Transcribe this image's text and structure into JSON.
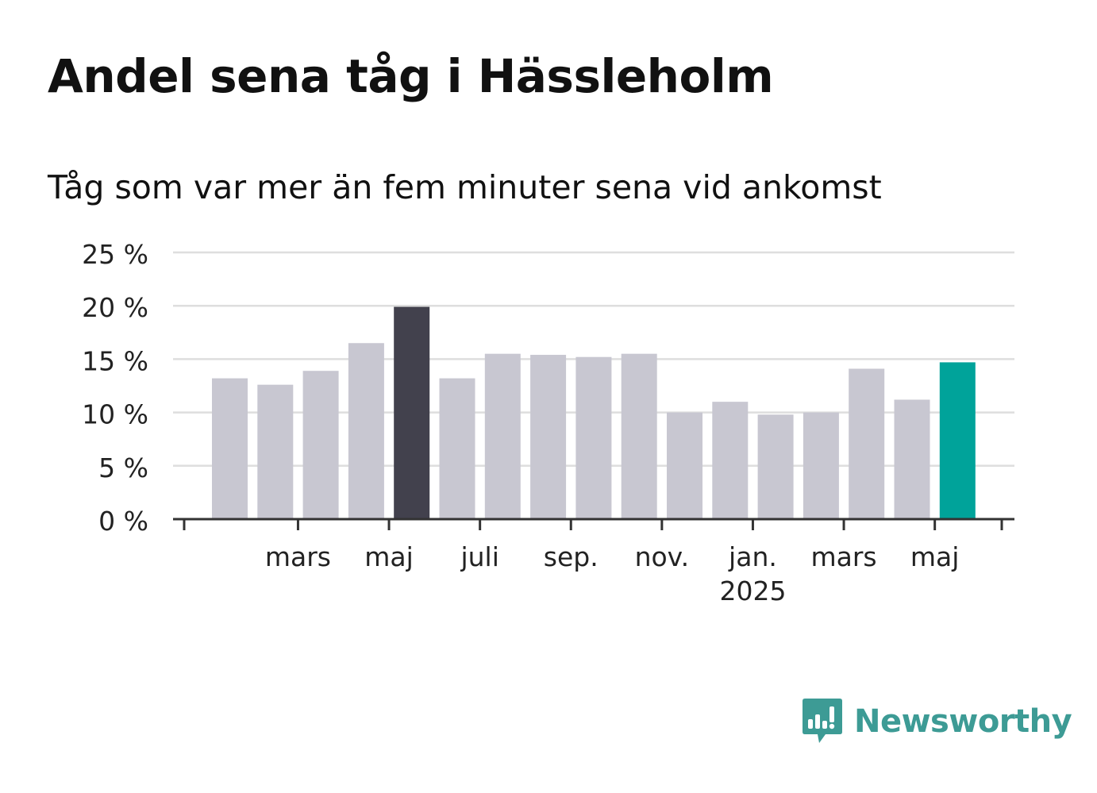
{
  "chart_data": {
    "type": "bar",
    "title": "Andel sena tåg i Hässleholm",
    "subtitle": "Tåg som var mer än fem minuter sena vid ankomst",
    "values": [
      13.2,
      12.6,
      13.9,
      16.5,
      19.9,
      13.2,
      15.5,
      15.4,
      15.2,
      15.5,
      10.0,
      11.0,
      9.8,
      10.0,
      14.1,
      11.2,
      14.7
    ],
    "bar_colors": [
      "#c8c7d1",
      "#c8c7d1",
      "#c8c7d1",
      "#c8c7d1",
      "#42414d",
      "#c8c7d1",
      "#c8c7d1",
      "#c8c7d1",
      "#c8c7d1",
      "#c8c7d1",
      "#c8c7d1",
      "#c8c7d1",
      "#c8c7d1",
      "#c8c7d1",
      "#c8c7d1",
      "#c8c7d1",
      "#00a39a"
    ],
    "ylim": [
      0,
      25
    ],
    "yticks": [
      0,
      5,
      10,
      15,
      20,
      25
    ],
    "ytick_labels": [
      "0 %",
      "5 %",
      "10 %",
      "15 %",
      "20 %",
      "25 %"
    ],
    "xtick_labels": [
      {
        "after_bar": 1,
        "label": "mars",
        "sub": ""
      },
      {
        "after_bar": 3,
        "label": "maj",
        "sub": ""
      },
      {
        "after_bar": 5,
        "label": "juli",
        "sub": ""
      },
      {
        "after_bar": 7,
        "label": "sep.",
        "sub": ""
      },
      {
        "after_bar": 9,
        "label": "nov.",
        "sub": ""
      },
      {
        "after_bar": 11,
        "label": "jan.",
        "sub": "2025"
      },
      {
        "after_bar": 13,
        "label": "mars",
        "sub": ""
      },
      {
        "after_bar": 15,
        "label": "maj",
        "sub": ""
      }
    ],
    "grid": true,
    "legend": "none",
    "colors": {
      "default": "#c8c7d1",
      "highlight_max": "#42414d",
      "current": "#00a39a",
      "grid": "#dedede",
      "axis": "#333333"
    }
  },
  "branding": {
    "logo_text": "Newsworthy",
    "logo_color": "#3d9b95",
    "logo_icon": "bar-chart-speech-bubble-icon"
  }
}
